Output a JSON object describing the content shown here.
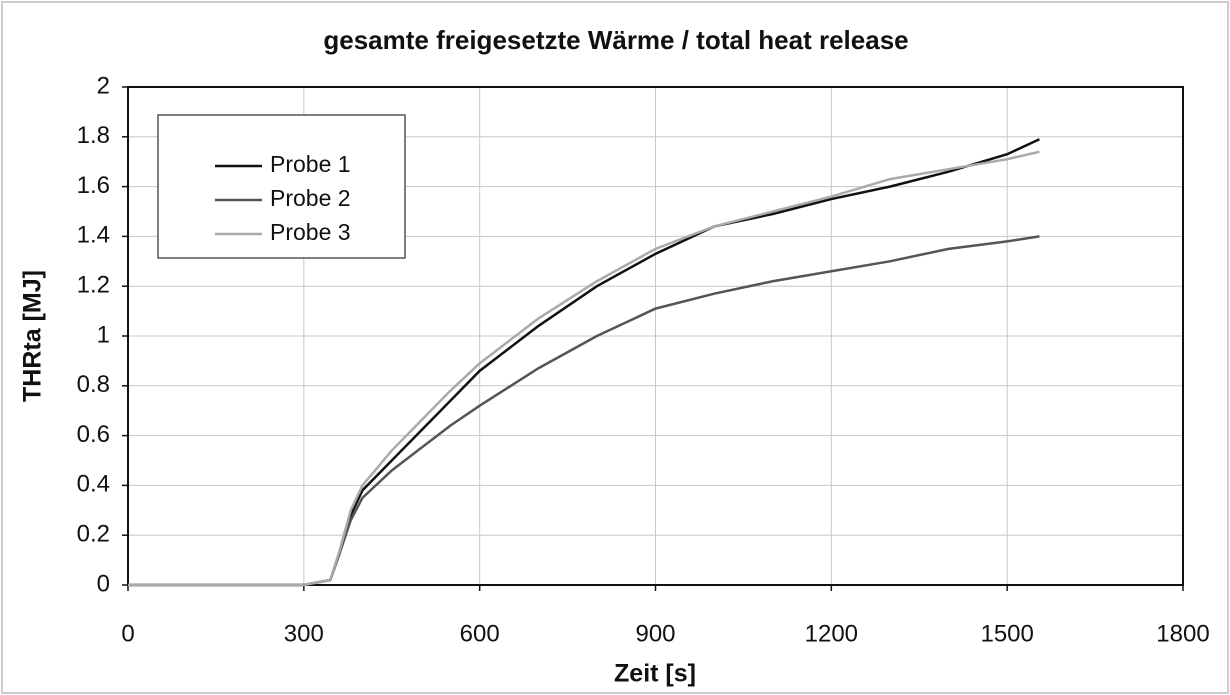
{
  "chart_data": {
    "type": "line",
    "title": "gesamte freigesetzte Wärme / total heat release",
    "x_label": "Zeit [s]",
    "y_label": "THRta [MJ]",
    "x": [
      0,
      300,
      345,
      360,
      380,
      400,
      450,
      500,
      550,
      600,
      700,
      800,
      900,
      1000,
      1100,
      1200,
      1300,
      1400,
      1500,
      1555
    ],
    "series": [
      {
        "name": "Probe 1",
        "color": "#111111",
        "values": [
          0,
          0,
          0.02,
          0.12,
          0.28,
          0.38,
          0.5,
          0.62,
          0.74,
          0.86,
          1.04,
          1.2,
          1.33,
          1.44,
          1.49,
          1.55,
          1.6,
          1.66,
          1.73,
          1.79
        ]
      },
      {
        "name": "Probe 2",
        "color": "#555555",
        "values": [
          0,
          0,
          0.02,
          0.12,
          0.26,
          0.35,
          0.46,
          0.55,
          0.64,
          0.72,
          0.87,
          1.0,
          1.11,
          1.17,
          1.22,
          1.26,
          1.3,
          1.35,
          1.38,
          1.4
        ]
      },
      {
        "name": "Probe 3",
        "color": "#aaaaaa",
        "values": [
          0,
          0,
          0.02,
          0.13,
          0.3,
          0.4,
          0.54,
          0.66,
          0.78,
          0.89,
          1.07,
          1.22,
          1.35,
          1.44,
          1.5,
          1.56,
          1.63,
          1.67,
          1.71,
          1.74
        ]
      }
    ],
    "xlim": [
      0,
      1800
    ],
    "xticks": [
      0,
      300,
      600,
      900,
      1200,
      1500,
      1800
    ],
    "ylim": [
      0,
      2
    ],
    "yticks": [
      0,
      0.2,
      0.4,
      0.6,
      0.8,
      1,
      1.2,
      1.4,
      1.6,
      1.8,
      2
    ],
    "grid": true,
    "legend": "upper left"
  }
}
